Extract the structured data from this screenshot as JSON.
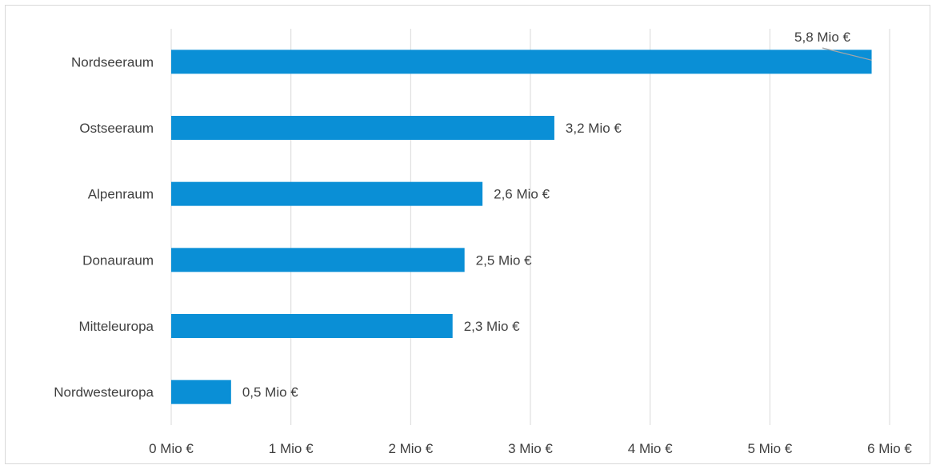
{
  "chart_data": {
    "type": "bar",
    "orientation": "horizontal",
    "title": "",
    "xlabel": "",
    "ylabel": "",
    "categories": [
      "Nordseeraum",
      "Ostseeraum",
      "Alpenraum",
      "Donauraum",
      "Mitteleuropa",
      "Nordwesteuropa"
    ],
    "values": [
      5.85,
      3.2,
      2.6,
      2.45,
      2.35,
      0.5
    ],
    "data_labels": [
      "5,8 Mio €",
      "3,2 Mio €",
      "2,6 Mio €",
      "2,5 Mio €",
      "2,3 Mio €",
      "0,5 Mio €"
    ],
    "xlim": [
      0,
      6
    ],
    "x_ticks": [
      0,
      1,
      2,
      3,
      4,
      5,
      6
    ],
    "x_tick_labels": [
      "0 Mio €",
      "1 Mio €",
      "2 Mio €",
      "3 Mio €",
      "4 Mio €",
      "5 Mio €",
      "6 Mio €"
    ],
    "grid": "vertical",
    "legend": "none",
    "colors": {
      "bar": "#0a8fd6",
      "grid": "#d9d9d9",
      "text": "#404040",
      "leader_line": "#a6a6a6"
    }
  }
}
